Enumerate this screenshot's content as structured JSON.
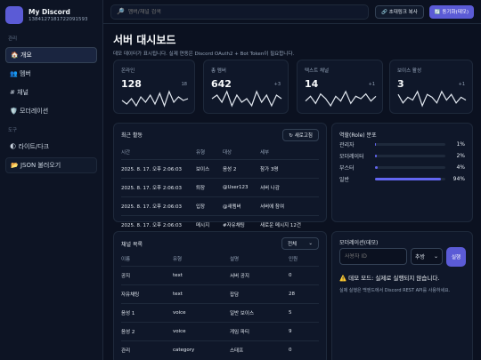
{
  "app": {
    "name": "My Discord",
    "id": "1384127181722091593"
  },
  "sidebar": {
    "section_manage": "관리",
    "section_tools": "도구",
    "items": [
      {
        "icon": "home-icon",
        "label": "🏠 개요",
        "active": true
      },
      {
        "icon": "members-icon",
        "label": "👥 멤버"
      },
      {
        "icon": "hash-icon",
        "label": "# 채널"
      },
      {
        "icon": "shield-icon",
        "label": "🛡️ 모더레이션"
      }
    ],
    "tools": [
      {
        "icon": "moon-icon",
        "label": "🌓 라이트/다크"
      },
      {
        "icon": "folder-icon",
        "label": "📂 JSON 불러오기"
      }
    ]
  },
  "topbar": {
    "search_placeholder": "멤버/채널 검색",
    "copy_invite": "🔗 초대링크 복사",
    "sync": "🔄 동기화(데모)"
  },
  "header": {
    "title": "서버 대시보드",
    "subtitle": "데모 데이터가 표시됩니다. 실제 연동은 Discord OAuth2 + Bot Token이 필요합니다."
  },
  "stats": [
    {
      "label": "온라인",
      "value": "128",
      "delta": "18",
      "spark": [
        5,
        3,
        6,
        2,
        7,
        4,
        8,
        3,
        9,
        2,
        10,
        4,
        7,
        5,
        6
      ]
    },
    {
      "label": "총 멤버",
      "value": "642",
      "delta": "+3",
      "spark": [
        5,
        6,
        4,
        7,
        3,
        6,
        4,
        5,
        3,
        7,
        4,
        6,
        3,
        6,
        5
      ]
    },
    {
      "label": "텍스트 채널",
      "value": "14",
      "delta": "+1",
      "spark": [
        4,
        6,
        3,
        7,
        5,
        2,
        6,
        4,
        8,
        3,
        6,
        5,
        7,
        4,
        6
      ]
    },
    {
      "label": "보이스 활성",
      "value": "3",
      "delta": "+1",
      "spark": [
        6,
        3,
        5,
        4,
        7,
        2,
        6,
        5,
        3,
        7,
        4,
        6,
        3,
        5,
        4
      ]
    }
  ],
  "activity": {
    "title": "최근 활동",
    "refresh": "↻ 새로고침",
    "columns": [
      "시간",
      "유형",
      "대상",
      "세부"
    ],
    "rows": [
      [
        "2025. 8. 17. 오후 2:06:03",
        "보이스",
        "음성 2",
        "참가 3명"
      ],
      [
        "2025. 8. 17. 오후 2:06:03",
        "퇴장",
        "@User123",
        "서버 나감"
      ],
      [
        "2025. 8. 17. 오후 2:06:03",
        "입장",
        "@새멤버",
        "서버에 참여"
      ],
      [
        "2025. 8. 17. 오후 2:06:03",
        "메시지",
        "#자유채팅",
        "새로운 메시지 12건"
      ]
    ]
  },
  "roles": {
    "title": "역할(Role) 분포",
    "items": [
      {
        "name": "관리자",
        "pct": "1%",
        "value": 1
      },
      {
        "name": "모더레이터",
        "pct": "2%",
        "value": 2
      },
      {
        "name": "부스터",
        "pct": "4%",
        "value": 4
      },
      {
        "name": "일반",
        "pct": "94%",
        "value": 94
      }
    ]
  },
  "channels": {
    "title": "채널 목록",
    "filter": "전체",
    "columns": [
      "이름",
      "유형",
      "설명",
      "인원"
    ],
    "rows": [
      [
        "공지",
        "text",
        "서버 공지",
        "0"
      ],
      [
        "자유채팅",
        "text",
        "잡담",
        "28"
      ],
      [
        "음성 1",
        "voice",
        "일반 보이스",
        "5"
      ],
      [
        "음성 2",
        "voice",
        "게임 파티",
        "9"
      ],
      [
        "관리",
        "category",
        "스태프",
        "0"
      ]
    ]
  },
  "moderation": {
    "title": "모더레이션(데모)",
    "user_placeholder": "사용자 ID",
    "action": "추방",
    "execute": "실행",
    "warning": "⚠️ 데모 모드: 실제로 실행되지 않습니다.",
    "note": "실제 실행은 백엔드에서 Discord REST API를 사용하세요."
  },
  "colors": {
    "accent": "#5b5bd6",
    "background": "#0b1120",
    "card": "#0f1729"
  }
}
